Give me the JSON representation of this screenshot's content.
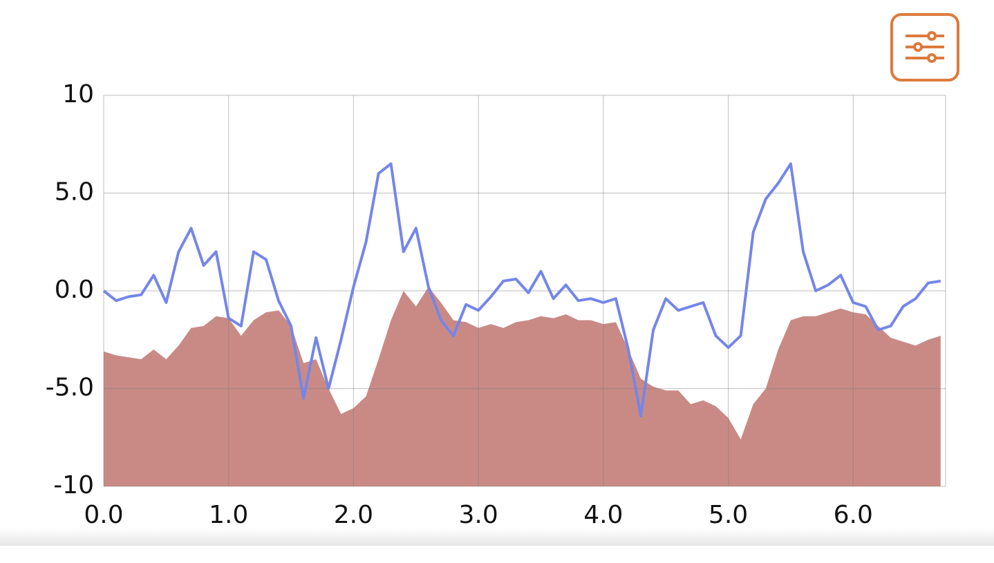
{
  "chart_data": {
    "type": "line",
    "grid": true,
    "xlim": [
      0,
      6.74
    ],
    "ylim": [
      -10,
      10
    ],
    "xticks": [
      {
        "value": 0,
        "label": "0.0"
      },
      {
        "value": 1,
        "label": "1.0"
      },
      {
        "value": 2,
        "label": "2.0"
      },
      {
        "value": 3,
        "label": "3.0"
      },
      {
        "value": 4,
        "label": "4.0"
      },
      {
        "value": 5,
        "label": "5.0"
      },
      {
        "value": 6,
        "label": "6.0"
      }
    ],
    "yticks": [
      -10,
      {
        "value": -5,
        "label": "-5.0"
      },
      {
        "value": 0,
        "label": "0.0"
      },
      {
        "value": 5,
        "label": "5.0"
      },
      10
    ],
    "x": [
      0.0,
      0.1,
      0.2,
      0.3,
      0.4,
      0.5,
      0.6,
      0.7,
      0.8,
      0.9,
      1.0,
      1.1,
      1.2,
      1.3,
      1.4,
      1.5,
      1.6,
      1.7,
      1.8,
      1.9,
      2.0,
      2.1,
      2.2,
      2.3,
      2.4,
      2.5,
      2.6,
      2.7,
      2.8,
      2.9,
      3.0,
      3.1,
      3.2,
      3.3,
      3.4,
      3.5,
      3.6,
      3.7,
      3.8,
      3.9,
      4.0,
      4.1,
      4.2,
      4.3,
      4.4,
      4.5,
      4.6,
      4.7,
      4.8,
      4.9,
      5.0,
      5.1,
      5.2,
      5.3,
      5.4,
      5.5,
      5.6,
      5.7,
      5.8,
      5.9,
      6.0,
      6.1,
      6.2,
      6.3,
      6.4,
      6.5,
      6.6,
      6.7
    ],
    "series": [
      {
        "color": "#c98a86",
        "area": true,
        "values": [
          -3.1,
          -3.3,
          -3.4,
          -3.5,
          -3.0,
          -3.5,
          -2.8,
          -1.9,
          -1.8,
          -1.3,
          -1.4,
          -2.3,
          -1.5,
          -1.1,
          -1.0,
          -1.8,
          -3.7,
          -3.5,
          -5.0,
          -6.3,
          -6.0,
          -5.4,
          -3.5,
          -1.5,
          0.0,
          -0.8,
          0.2,
          -0.6,
          -1.5,
          -1.6,
          -1.9,
          -1.7,
          -1.9,
          -1.6,
          -1.5,
          -1.3,
          -1.4,
          -1.2,
          -1.5,
          -1.5,
          -1.7,
          -1.6,
          -3.0,
          -4.5,
          -4.9,
          -5.1,
          -5.1,
          -5.8,
          -5.6,
          -5.9,
          -6.5,
          -7.6,
          -5.8,
          -5.0,
          -3.0,
          -1.5,
          -1.3,
          -1.3,
          -1.1,
          -0.9,
          -1.1,
          -1.2,
          -1.8,
          -2.4,
          -2.6,
          -2.8,
          -2.5,
          -2.3
        ]
      },
      {
        "color": "#7486e8",
        "area": false,
        "values": [
          0.0,
          -0.5,
          -0.3,
          -0.2,
          0.8,
          -0.6,
          2.0,
          3.2,
          1.3,
          2.0,
          -1.4,
          -1.8,
          2.0,
          1.6,
          -0.5,
          -1.8,
          -5.5,
          -2.4,
          -5.0,
          -2.5,
          0.2,
          2.5,
          6.0,
          6.5,
          2.0,
          3.2,
          0.2,
          -1.5,
          -2.3,
          -0.7,
          -1.0,
          -0.3,
          0.5,
          0.6,
          -0.1,
          1.0,
          -0.4,
          0.3,
          -0.5,
          -0.4,
          -0.6,
          -0.4,
          -3.0,
          -6.4,
          -2.0,
          -0.4,
          -1.0,
          -0.8,
          -0.6,
          -2.3,
          -2.9,
          -2.3,
          3.0,
          4.7,
          5.5,
          6.5,
          2.0,
          0.0,
          0.3,
          0.8,
          -0.6,
          -0.8,
          -2.0,
          -1.8,
          -0.8,
          -0.4,
          0.4,
          0.5
        ]
      }
    ]
  }
}
